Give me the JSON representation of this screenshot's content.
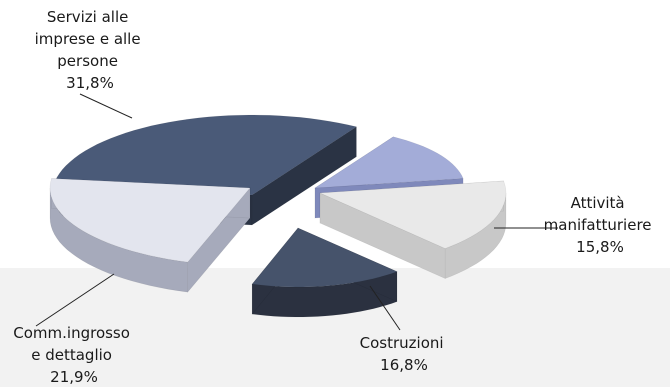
{
  "chart_data": {
    "type": "pie",
    "title": "",
    "slices": [
      {
        "label_lines": [
          "Servizi alle",
          "imprese e alle",
          "persone"
        ],
        "value_label": "31,8%",
        "value": 31.8,
        "top": "#4a5a78",
        "side": "#2a3344"
      },
      {
        "label_lines": [
          "Attività",
          "manifatturiere"
        ],
        "value_label": "15,8%",
        "value": 15.8,
        "top": "#e9e9e9",
        "side": "#c8c8c8"
      },
      {
        "label_lines": [
          "Costruzioni"
        ],
        "value_label": "16,8%",
        "value": 16.8,
        "top": "#46536b",
        "side": "#2b3140"
      },
      {
        "label_lines": [
          "Comm.ingrosso",
          "e dettaglio"
        ],
        "value_label": "21,9%",
        "value": 21.9,
        "top": "#e3e5ee",
        "side": "#a6aabb"
      },
      {
        "label_lines": [],
        "value_label": "",
        "value": 13.7,
        "top": "#a3acd8",
        "side": "#7f89bb"
      }
    ]
  }
}
